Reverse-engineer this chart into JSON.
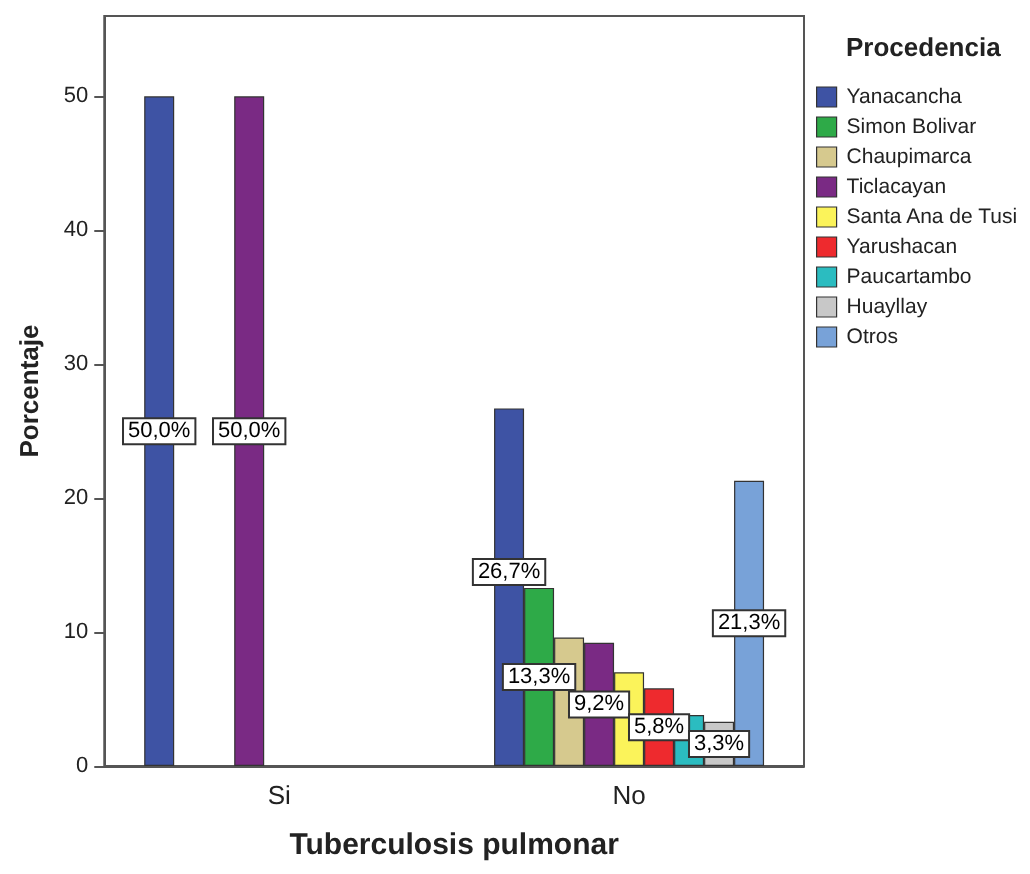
{
  "chart_data": {
    "type": "bar",
    "xlabel": "Tuberculosis pulmonar",
    "ylabel": "Porcentaje",
    "legend_title": "Procedencia",
    "categories": [
      "Si",
      "No"
    ],
    "series": [
      {
        "name": "Yanacancha",
        "color": "#3e53a4",
        "values": [
          50.0,
          26.7
        ],
        "value_labels": [
          "50,0%",
          "26,7%"
        ]
      },
      {
        "name": "Simon Bolivar",
        "color": "#2eaa48",
        "values": [
          null,
          13.3
        ],
        "value_labels": [
          null,
          "13,3%"
        ]
      },
      {
        "name": "Chaupimarca",
        "color": "#d6c98e",
        "values": [
          null,
          9.6
        ],
        "value_labels": [
          null,
          null
        ]
      },
      {
        "name": "Ticlacayan",
        "color": "#7a2a84",
        "values": [
          50.0,
          9.2
        ],
        "value_labels": [
          "50,0%",
          "9,2%"
        ]
      },
      {
        "name": "Santa Ana de Tusi",
        "color": "#fbf35a",
        "values": [
          null,
          7.0
        ],
        "value_labels": [
          null,
          null
        ]
      },
      {
        "name": "Yarushacan",
        "color": "#ee2a2e",
        "values": [
          null,
          5.8
        ],
        "value_labels": [
          null,
          "5,8%"
        ]
      },
      {
        "name": "Paucartambo",
        "color": "#2bbcc0",
        "values": [
          null,
          3.8
        ],
        "value_labels": [
          null,
          null
        ]
      },
      {
        "name": "Huayllay",
        "color": "#c8c8c8",
        "values": [
          null,
          3.3
        ],
        "value_labels": [
          null,
          "3,3%"
        ]
      },
      {
        "name": "Otros",
        "color": "#78a2d8",
        "values": [
          null,
          21.3
        ],
        "value_labels": [
          null,
          "21,3%"
        ]
      }
    ],
    "ylim": [
      0,
      56
    ],
    "yticks": [
      0,
      10,
      20,
      30,
      40,
      50
    ],
    "grid": false,
    "legend": "top right"
  }
}
